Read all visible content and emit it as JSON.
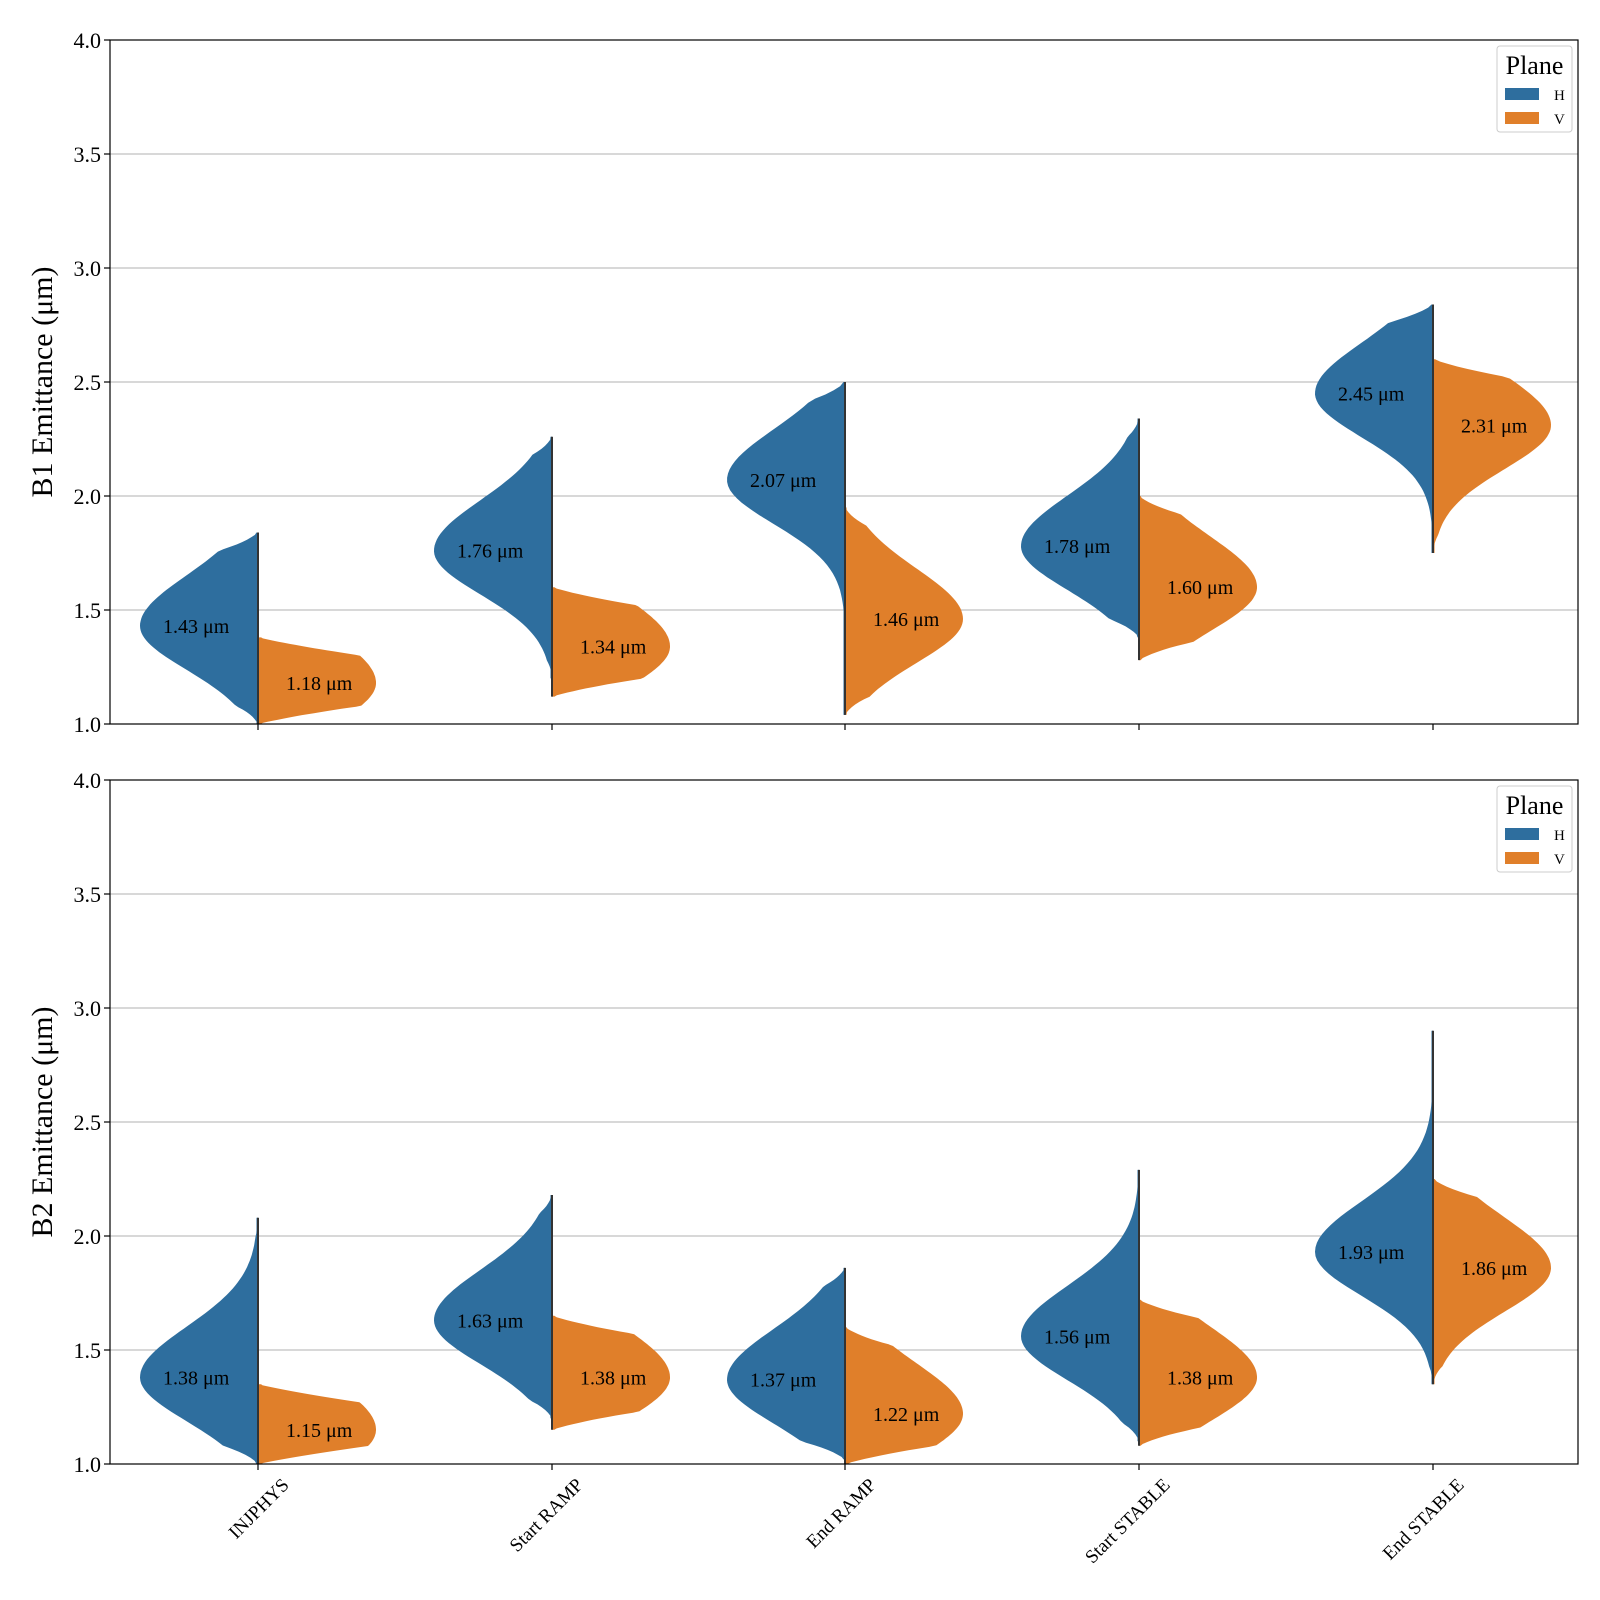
{
  "chart_data": [
    {
      "type": "violin",
      "split": true,
      "ylabel": "B1 Emittance (μm)",
      "ylim": [
        1.0,
        4.0
      ],
      "yticks": [
        "1.0",
        "1.5",
        "2.0",
        "2.5",
        "3.0",
        "3.5",
        "4.0"
      ],
      "categories": [
        "INJPHYS",
        "Start RAMP",
        "End RAMP",
        "Start STABLE",
        "End STABLE"
      ],
      "grid": "horizontal",
      "legend": {
        "title": "Plane",
        "position": "top-right",
        "entries": [
          "H",
          "V"
        ]
      },
      "series": [
        {
          "name": "H",
          "color": "#2e6e9e",
          "medians": [
            1.43,
            1.76,
            2.07,
            1.78,
            2.45
          ],
          "labels": [
            "1.43 μm",
            "1.76 μm",
            "2.07 μm",
            "1.78 μm",
            "2.45 μm"
          ],
          "ranges": [
            [
              1.0,
              1.84
            ],
            [
              1.2,
              2.26
            ],
            [
              1.04,
              2.5
            ],
            [
              1.38,
              2.34
            ],
            [
              1.75,
              2.84
            ]
          ]
        },
        {
          "name": "V",
          "color": "#e07f2a",
          "medians": [
            1.18,
            1.34,
            1.46,
            1.6,
            2.31
          ],
          "labels": [
            "1.18 μm",
            "1.34 μm",
            "1.46 μm",
            "1.60 μm",
            "2.31 μm"
          ],
          "ranges": [
            [
              1.0,
              1.38
            ],
            [
              1.12,
              1.6
            ],
            [
              1.04,
              1.95
            ],
            [
              1.28,
              2.0
            ],
            [
              1.75,
              2.6
            ]
          ]
        }
      ]
    },
    {
      "type": "violin",
      "split": true,
      "ylabel": "B2 Emittance (μm)",
      "ylim": [
        1.0,
        4.0
      ],
      "yticks": [
        "1.0",
        "1.5",
        "2.0",
        "2.5",
        "3.0",
        "3.5",
        "4.0"
      ],
      "categories": [
        "INJPHYS",
        "Start RAMP",
        "End RAMP",
        "Start STABLE",
        "End STABLE"
      ],
      "grid": "horizontal",
      "legend": {
        "title": "Plane",
        "position": "top-right",
        "entries": [
          "H",
          "V"
        ]
      },
      "series": [
        {
          "name": "H",
          "color": "#2e6e9e",
          "medians": [
            1.38,
            1.63,
            1.37,
            1.56,
            1.93
          ],
          "labels": [
            "1.38 μm",
            "1.63 μm",
            "1.37 μm",
            "1.56 μm",
            "1.93 μm"
          ],
          "ranges": [
            [
              1.0,
              2.08
            ],
            [
              1.2,
              2.18
            ],
            [
              1.02,
              1.86
            ],
            [
              1.1,
              2.29
            ],
            [
              1.35,
              2.9
            ]
          ]
        },
        {
          "name": "V",
          "color": "#e07f2a",
          "medians": [
            1.15,
            1.38,
            1.22,
            1.38,
            1.86
          ],
          "labels": [
            "1.15 μm",
            "1.38 μm",
            "1.22 μm",
            "1.38 μm",
            "1.86 μm"
          ],
          "ranges": [
            [
              1.0,
              1.35
            ],
            [
              1.15,
              1.65
            ],
            [
              1.0,
              1.6
            ],
            [
              1.08,
              1.72
            ],
            [
              1.35,
              2.25
            ]
          ]
        }
      ]
    }
  ]
}
